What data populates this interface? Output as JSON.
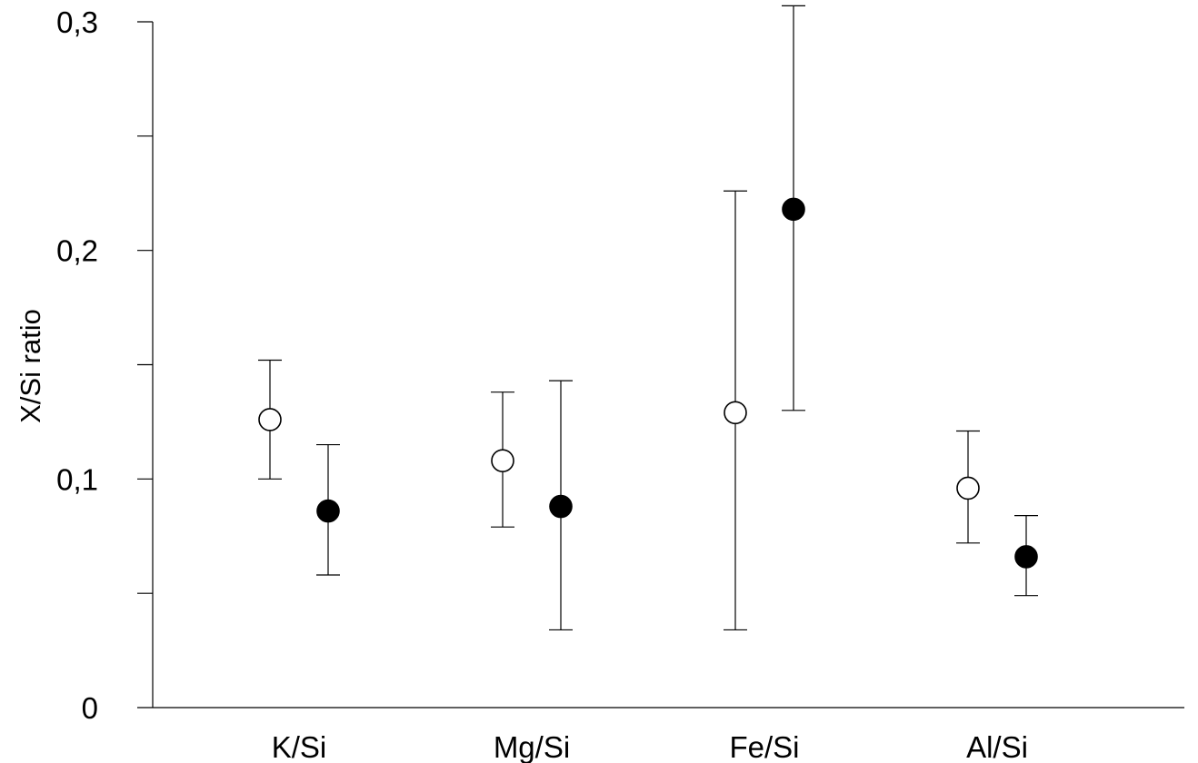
{
  "chart_data": {
    "type": "scatter",
    "title": "",
    "xlabel": "",
    "ylabel": "X/Si ratio",
    "ylim": [
      0,
      0.3
    ],
    "y_major_ticks": [
      0,
      0.1,
      0.2,
      0.3
    ],
    "y_tick_labels": [
      "0",
      "0,1",
      "0,2",
      "0,3"
    ],
    "y_minor_ticks": [
      0.05,
      0.15,
      0.25
    ],
    "grid": false,
    "legend": "none",
    "categories": [
      "K/Si",
      "Mg/Si",
      "Fe/Si",
      "Al/Si"
    ],
    "series": [
      {
        "marker": "open-circle",
        "color": "#000000",
        "values": [
          0.126,
          0.108,
          0.129,
          0.096
        ],
        "error_low": [
          0.1,
          0.079,
          0.034,
          0.072
        ],
        "error_high": [
          0.152,
          0.138,
          0.226,
          0.121
        ]
      },
      {
        "marker": "filled-circle",
        "color": "#000000",
        "values": [
          0.086,
          0.088,
          0.218,
          0.066
        ],
        "error_low": [
          0.058,
          0.034,
          0.13,
          0.049
        ],
        "error_high": [
          0.115,
          0.143,
          0.307,
          0.084
        ]
      }
    ]
  }
}
